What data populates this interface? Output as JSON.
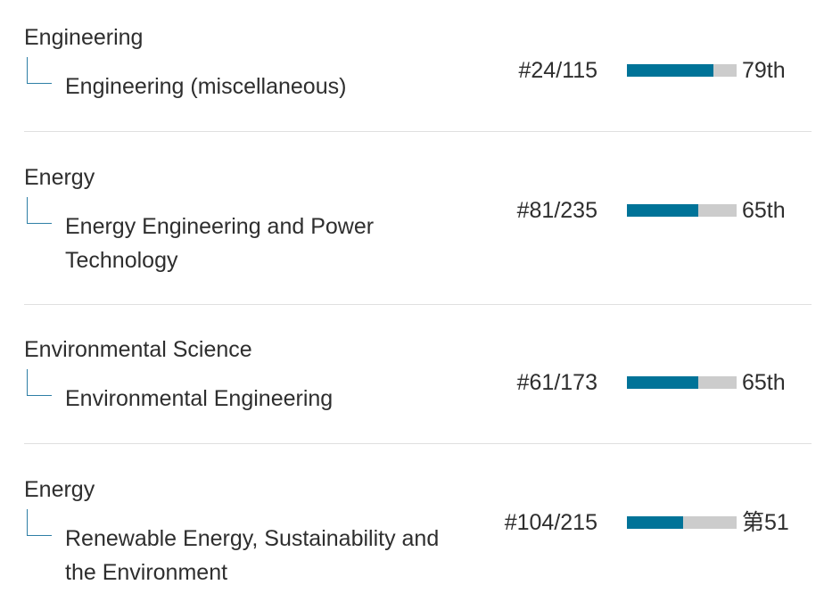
{
  "rows": [
    {
      "category": "Engineering",
      "subcategory": "Engineering (miscellaneous)",
      "rank": "#24/115",
      "percentile": 79,
      "percentile_label": "79th"
    },
    {
      "category": "Energy",
      "subcategory": "Energy Engineering and Power Technology",
      "rank": "#81/235",
      "percentile": 65,
      "percentile_label": "65th"
    },
    {
      "category": "Environmental Science",
      "subcategory": "Environmental Engineering",
      "rank": "#61/173",
      "percentile": 65,
      "percentile_label": "65th"
    },
    {
      "category": "Energy",
      "subcategory": "Renewable Energy, Sustainability and the Environment",
      "rank": "#104/215",
      "percentile": 51,
      "percentile_label": "第51"
    }
  ]
}
